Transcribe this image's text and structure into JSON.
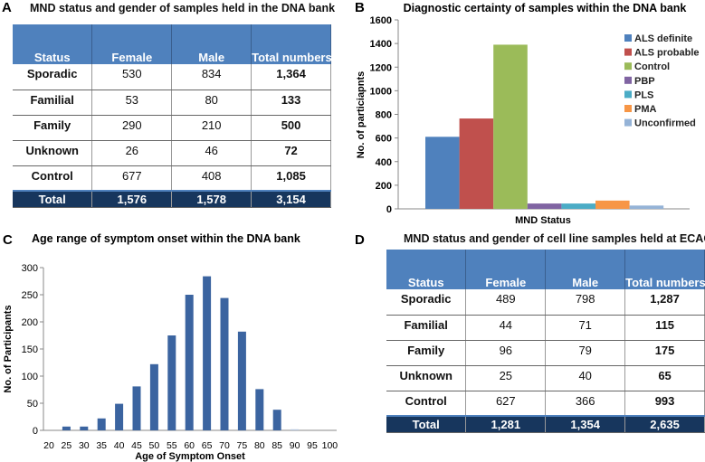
{
  "panel_a": {
    "letter": "A",
    "title": "MND status and gender of samples held in the DNA bank",
    "headers": [
      "Status",
      "Female",
      "Male",
      "Total numbers"
    ],
    "rows": [
      [
        "Sporadic",
        "530",
        "834",
        "1,364"
      ],
      [
        "Familial",
        "53",
        "80",
        "133"
      ],
      [
        "Family",
        "290",
        "210",
        "500"
      ],
      [
        "Unknown",
        "26",
        "46",
        "72"
      ],
      [
        "Control",
        "677",
        "408",
        "1,085"
      ]
    ],
    "total": [
      "Total",
      "1,576",
      "1,578",
      "3,154"
    ]
  },
  "panel_d": {
    "letter": "D",
    "title": "MND status and gender of cell line samples held at ECACC",
    "headers": [
      "Status",
      "Female",
      "Male",
      "Total numbers"
    ],
    "rows": [
      [
        "Sporadic",
        "489",
        "798",
        "1,287"
      ],
      [
        "Familial",
        "44",
        "71",
        "115"
      ],
      [
        "Family",
        "96",
        "79",
        "175"
      ],
      [
        "Unknown",
        "25",
        "40",
        "65"
      ],
      [
        "Control",
        "627",
        "366",
        "993"
      ]
    ],
    "total": [
      "Total",
      "1,281",
      "1,354",
      "2,635"
    ]
  },
  "chart_data": [
    {
      "panel": "B",
      "type": "bar",
      "title": "Diagnostic certainty of samples within the DNA bank",
      "xlabel": "MND Status",
      "ylabel": "No. of particiapnts",
      "ylim": [
        0,
        1600
      ],
      "yticks": [
        0,
        200,
        400,
        600,
        800,
        1000,
        1200,
        1400,
        1600
      ],
      "legend_position": "right",
      "series": [
        {
          "name": "ALS definite",
          "value": 610,
          "color": "#4f81bd"
        },
        {
          "name": "ALS probable",
          "value": 765,
          "color": "#c0504d"
        },
        {
          "name": "Control",
          "value": 1390,
          "color": "#9bbb59"
        },
        {
          "name": "PBP",
          "value": 45,
          "color": "#8064a2"
        },
        {
          "name": "PLS",
          "value": 45,
          "color": "#4bacc6"
        },
        {
          "name": "PMA",
          "value": 70,
          "color": "#f79646"
        },
        {
          "name": "Unconfirmed",
          "value": 28,
          "color": "#95b3d7"
        }
      ]
    },
    {
      "panel": "C",
      "type": "bar",
      "title": "Age range of symptom onset within the DNA bank",
      "xlabel": "Age of Symptom Onset",
      "ylabel": "No. of Participants",
      "ylim": [
        0,
        300
      ],
      "yticks": [
        0,
        50,
        100,
        150,
        200,
        250,
        300
      ],
      "color": "#3b64a0",
      "categories": [
        "20",
        "25",
        "30",
        "35",
        "40",
        "45",
        "50",
        "55",
        "60",
        "65",
        "70",
        "75",
        "80",
        "85",
        "90",
        "95",
        "100"
      ],
      "values": [
        0,
        7,
        7,
        22,
        49,
        81,
        122,
        175,
        250,
        284,
        244,
        182,
        76,
        38,
        2,
        0,
        0
      ]
    }
  ]
}
